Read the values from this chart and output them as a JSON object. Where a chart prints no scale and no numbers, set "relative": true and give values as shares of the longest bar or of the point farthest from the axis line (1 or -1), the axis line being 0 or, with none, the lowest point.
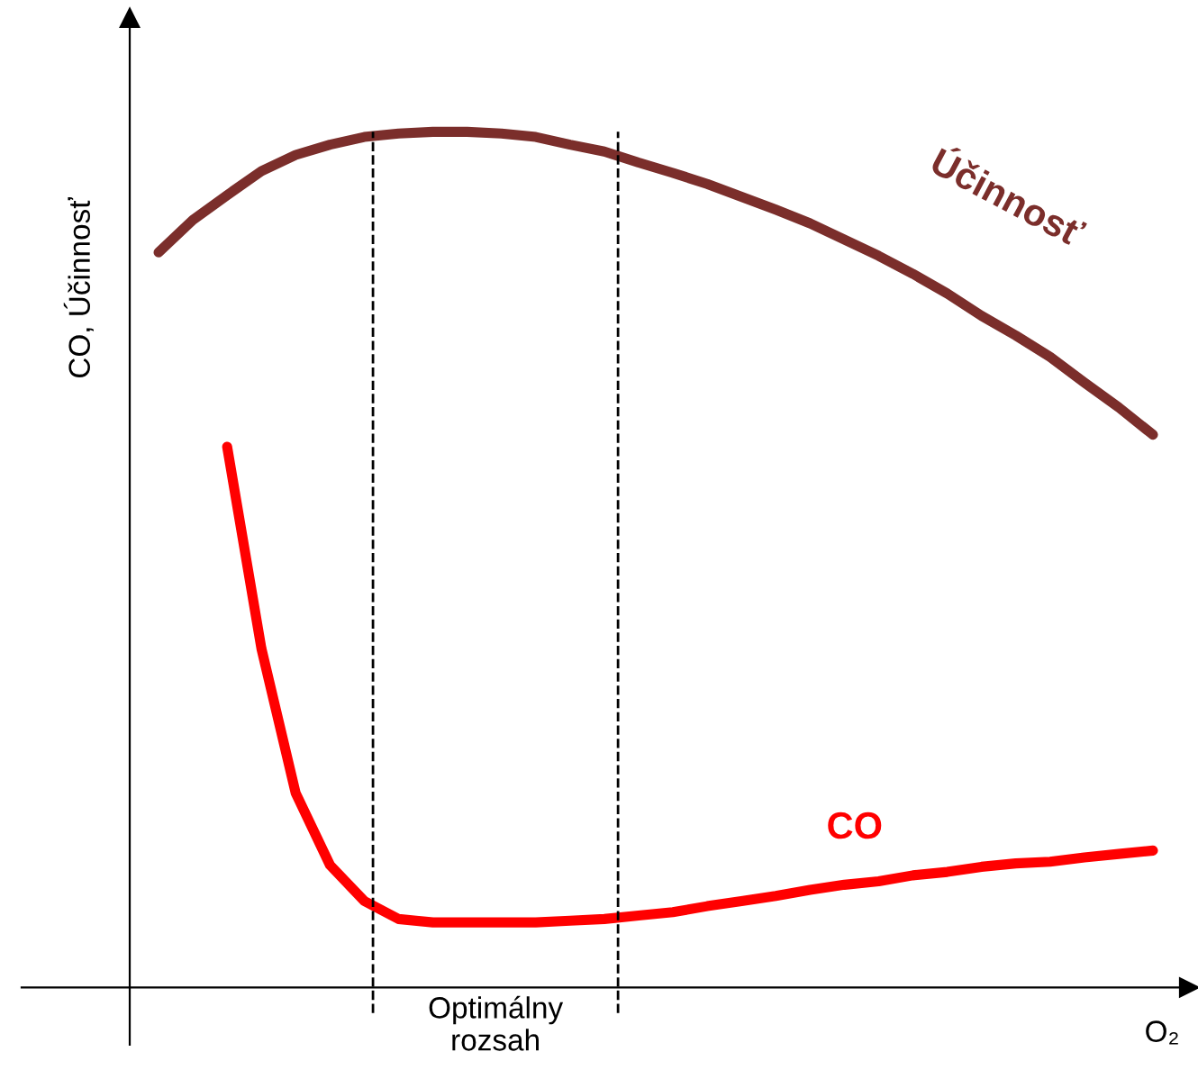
{
  "chart_data": {
    "type": "line",
    "relative": true,
    "xlabel": "O₂",
    "ylabel": "CO, Účinnosť",
    "categories": [
      null,
      null,
      null,
      null,
      null,
      null,
      null,
      null,
      null,
      null,
      null,
      null,
      null,
      null,
      null,
      null,
      null,
      null,
      null,
      null,
      null,
      null,
      null,
      null,
      null,
      null,
      null,
      null,
      null,
      null
    ],
    "series": [
      {
        "name": "Účinnosť",
        "color": "#7b2e2b",
        "values": [
          0.859,
          0.897,
          0.926,
          0.954,
          0.973,
          0.985,
          0.994,
          0.998,
          1.0,
          1.0,
          0.998,
          0.994,
          0.985,
          0.977,
          0.964,
          0.952,
          0.939,
          0.924,
          0.909,
          0.893,
          0.874,
          0.855,
          0.834,
          0.811,
          0.785,
          0.762,
          0.737,
          0.707,
          0.678,
          0.646
        ]
      },
      {
        "name": "CO",
        "color": "#ff0000",
        "values": [
          null,
          null,
          0.632,
          0.396,
          0.227,
          0.143,
          0.101,
          0.08,
          0.076,
          0.076,
          0.076,
          0.076,
          0.078,
          0.08,
          0.084,
          0.088,
          0.095,
          0.101,
          0.107,
          0.114,
          0.12,
          0.124,
          0.131,
          0.135,
          0.141,
          0.145,
          0.147,
          0.152,
          0.156,
          0.16
        ]
      }
    ],
    "annotations": [
      "Optimálny\nrozsah"
    ],
    "legend": false,
    "marker": "none",
    "line_style": "solid"
  }
}
